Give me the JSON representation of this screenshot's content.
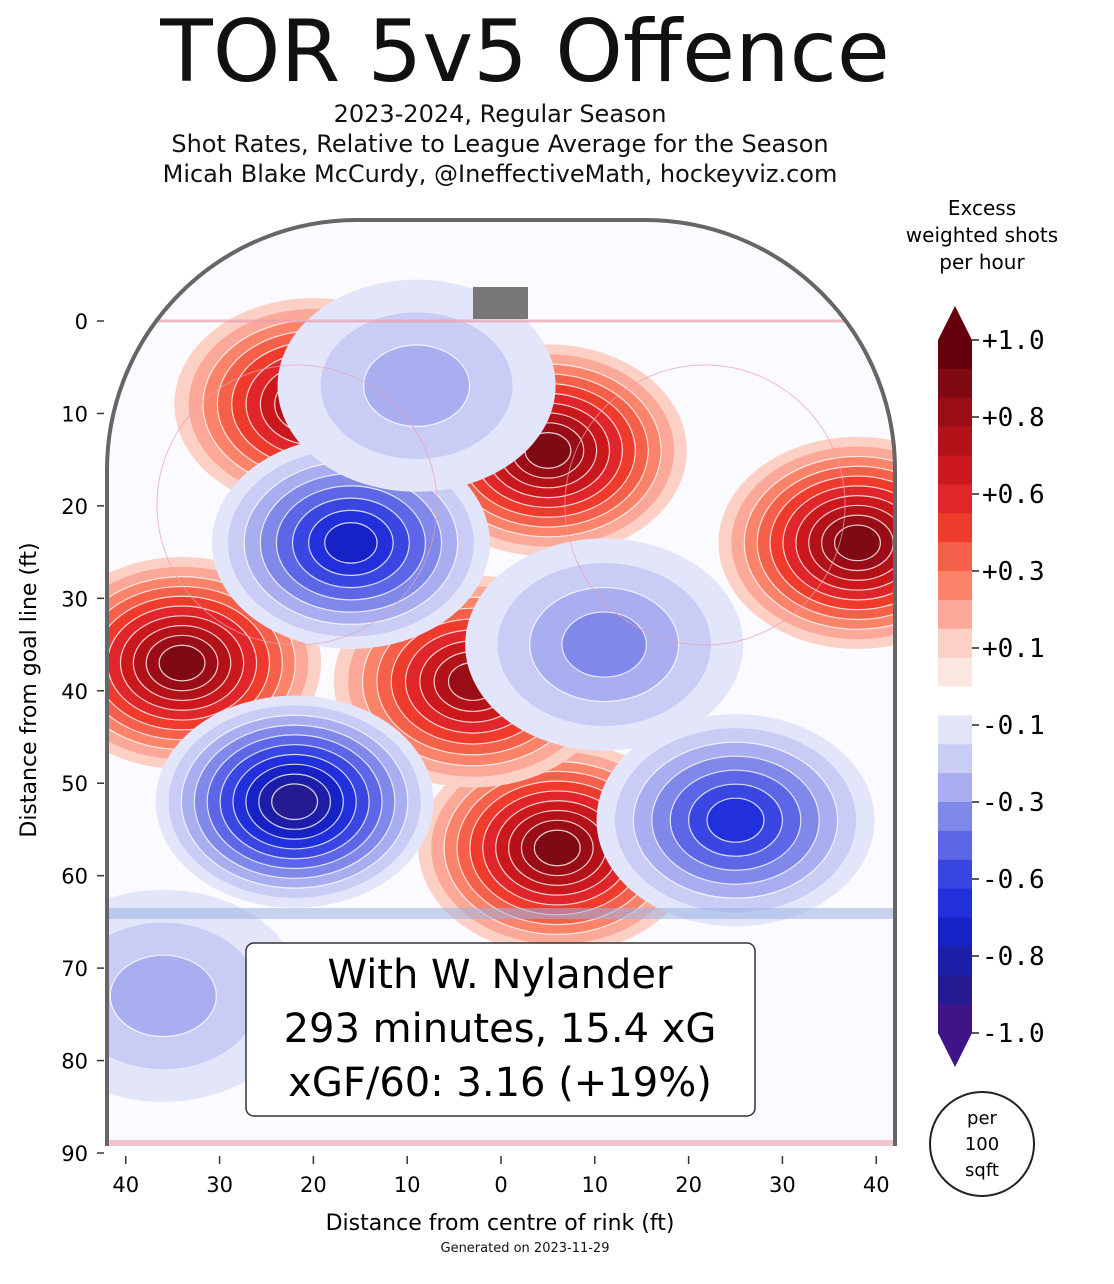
{
  "header": {
    "title": "TOR 5v5 Offence",
    "subtitle_lines": [
      "2023-2024, Regular Season",
      "Shot Rates, Relative to League Average for the Season",
      "Micah Blake McCurdy, @IneffectiveMath, hockeyviz.com"
    ]
  },
  "info_box": {
    "line1": "With W. Nylander",
    "line2": "293 minutes, 15.4 xG",
    "line3": "xGF/60: 3.16 (+19%)"
  },
  "footer": {
    "generated": "Generated on 2023-11-29"
  },
  "colorbar": {
    "title_lines": [
      "Excess",
      "weighted shots",
      "per hour"
    ],
    "tick_labels": [
      "+1.0",
      "+0.8",
      "+0.6",
      "+0.3",
      "+0.1",
      "-0.1",
      "-0.3",
      "-0.6",
      "-0.8",
      "-1.0"
    ],
    "unit_lines": [
      "per",
      "100",
      "sqft"
    ],
    "colors": [
      "#67000d",
      "#7f0a14",
      "#9b0d16",
      "#b31218",
      "#cb181d",
      "#e0262a",
      "#ef3b2c",
      "#f5604a",
      "#fb836a",
      "#fca898",
      "#fdd0c6",
      "#fbe6e0",
      "#ffffff",
      "#e3e6fa",
      "#c9cdf5",
      "#a8aef0",
      "#8088ea",
      "#5c66e6",
      "#3a46e2",
      "#2230dc",
      "#1722c6",
      "#1c1ea8",
      "#261a90",
      "#3f1488"
    ]
  },
  "chart_data": {
    "type": "heatmap",
    "xlabel": "Distance from centre of rink (ft)",
    "ylabel": "Distance from goal line (ft)",
    "xlim": [
      -42,
      42
    ],
    "ylim": [
      0,
      90
    ],
    "x_ticks": [
      -40,
      -30,
      -20,
      -10,
      0,
      10,
      20,
      30,
      40
    ],
    "x_tick_labels": [
      "40",
      "30",
      "20",
      "10",
      "0",
      "10",
      "20",
      "30",
      "40"
    ],
    "y_ticks": [
      0,
      10,
      20,
      30,
      40,
      50,
      60,
      70,
      80,
      90
    ],
    "y_tick_labels": [
      "0",
      "10",
      "20",
      "30",
      "40",
      "50",
      "60",
      "70",
      "80",
      "90"
    ],
    "hotspots": [
      {
        "x": -20,
        "y": 9,
        "v": 0.85
      },
      {
        "x": -34,
        "y": 37,
        "v": 1.0
      },
      {
        "x": 5,
        "y": 14,
        "v": 1.0
      },
      {
        "x": 6,
        "y": 57,
        "v": 1.0
      },
      {
        "x": -3,
        "y": 39,
        "v": 0.85
      },
      {
        "x": 38,
        "y": 24,
        "v": 1.0
      },
      {
        "x": -16,
        "y": 24,
        "v": -0.8
      },
      {
        "x": -22,
        "y": 52,
        "v": -0.95
      },
      {
        "x": 25,
        "y": 54,
        "v": -0.7
      },
      {
        "x": -9,
        "y": 7,
        "v": -0.25
      },
      {
        "x": 11,
        "y": 35,
        "v": -0.4
      },
      {
        "x": -36,
        "y": 73,
        "v": -0.3
      }
    ]
  }
}
